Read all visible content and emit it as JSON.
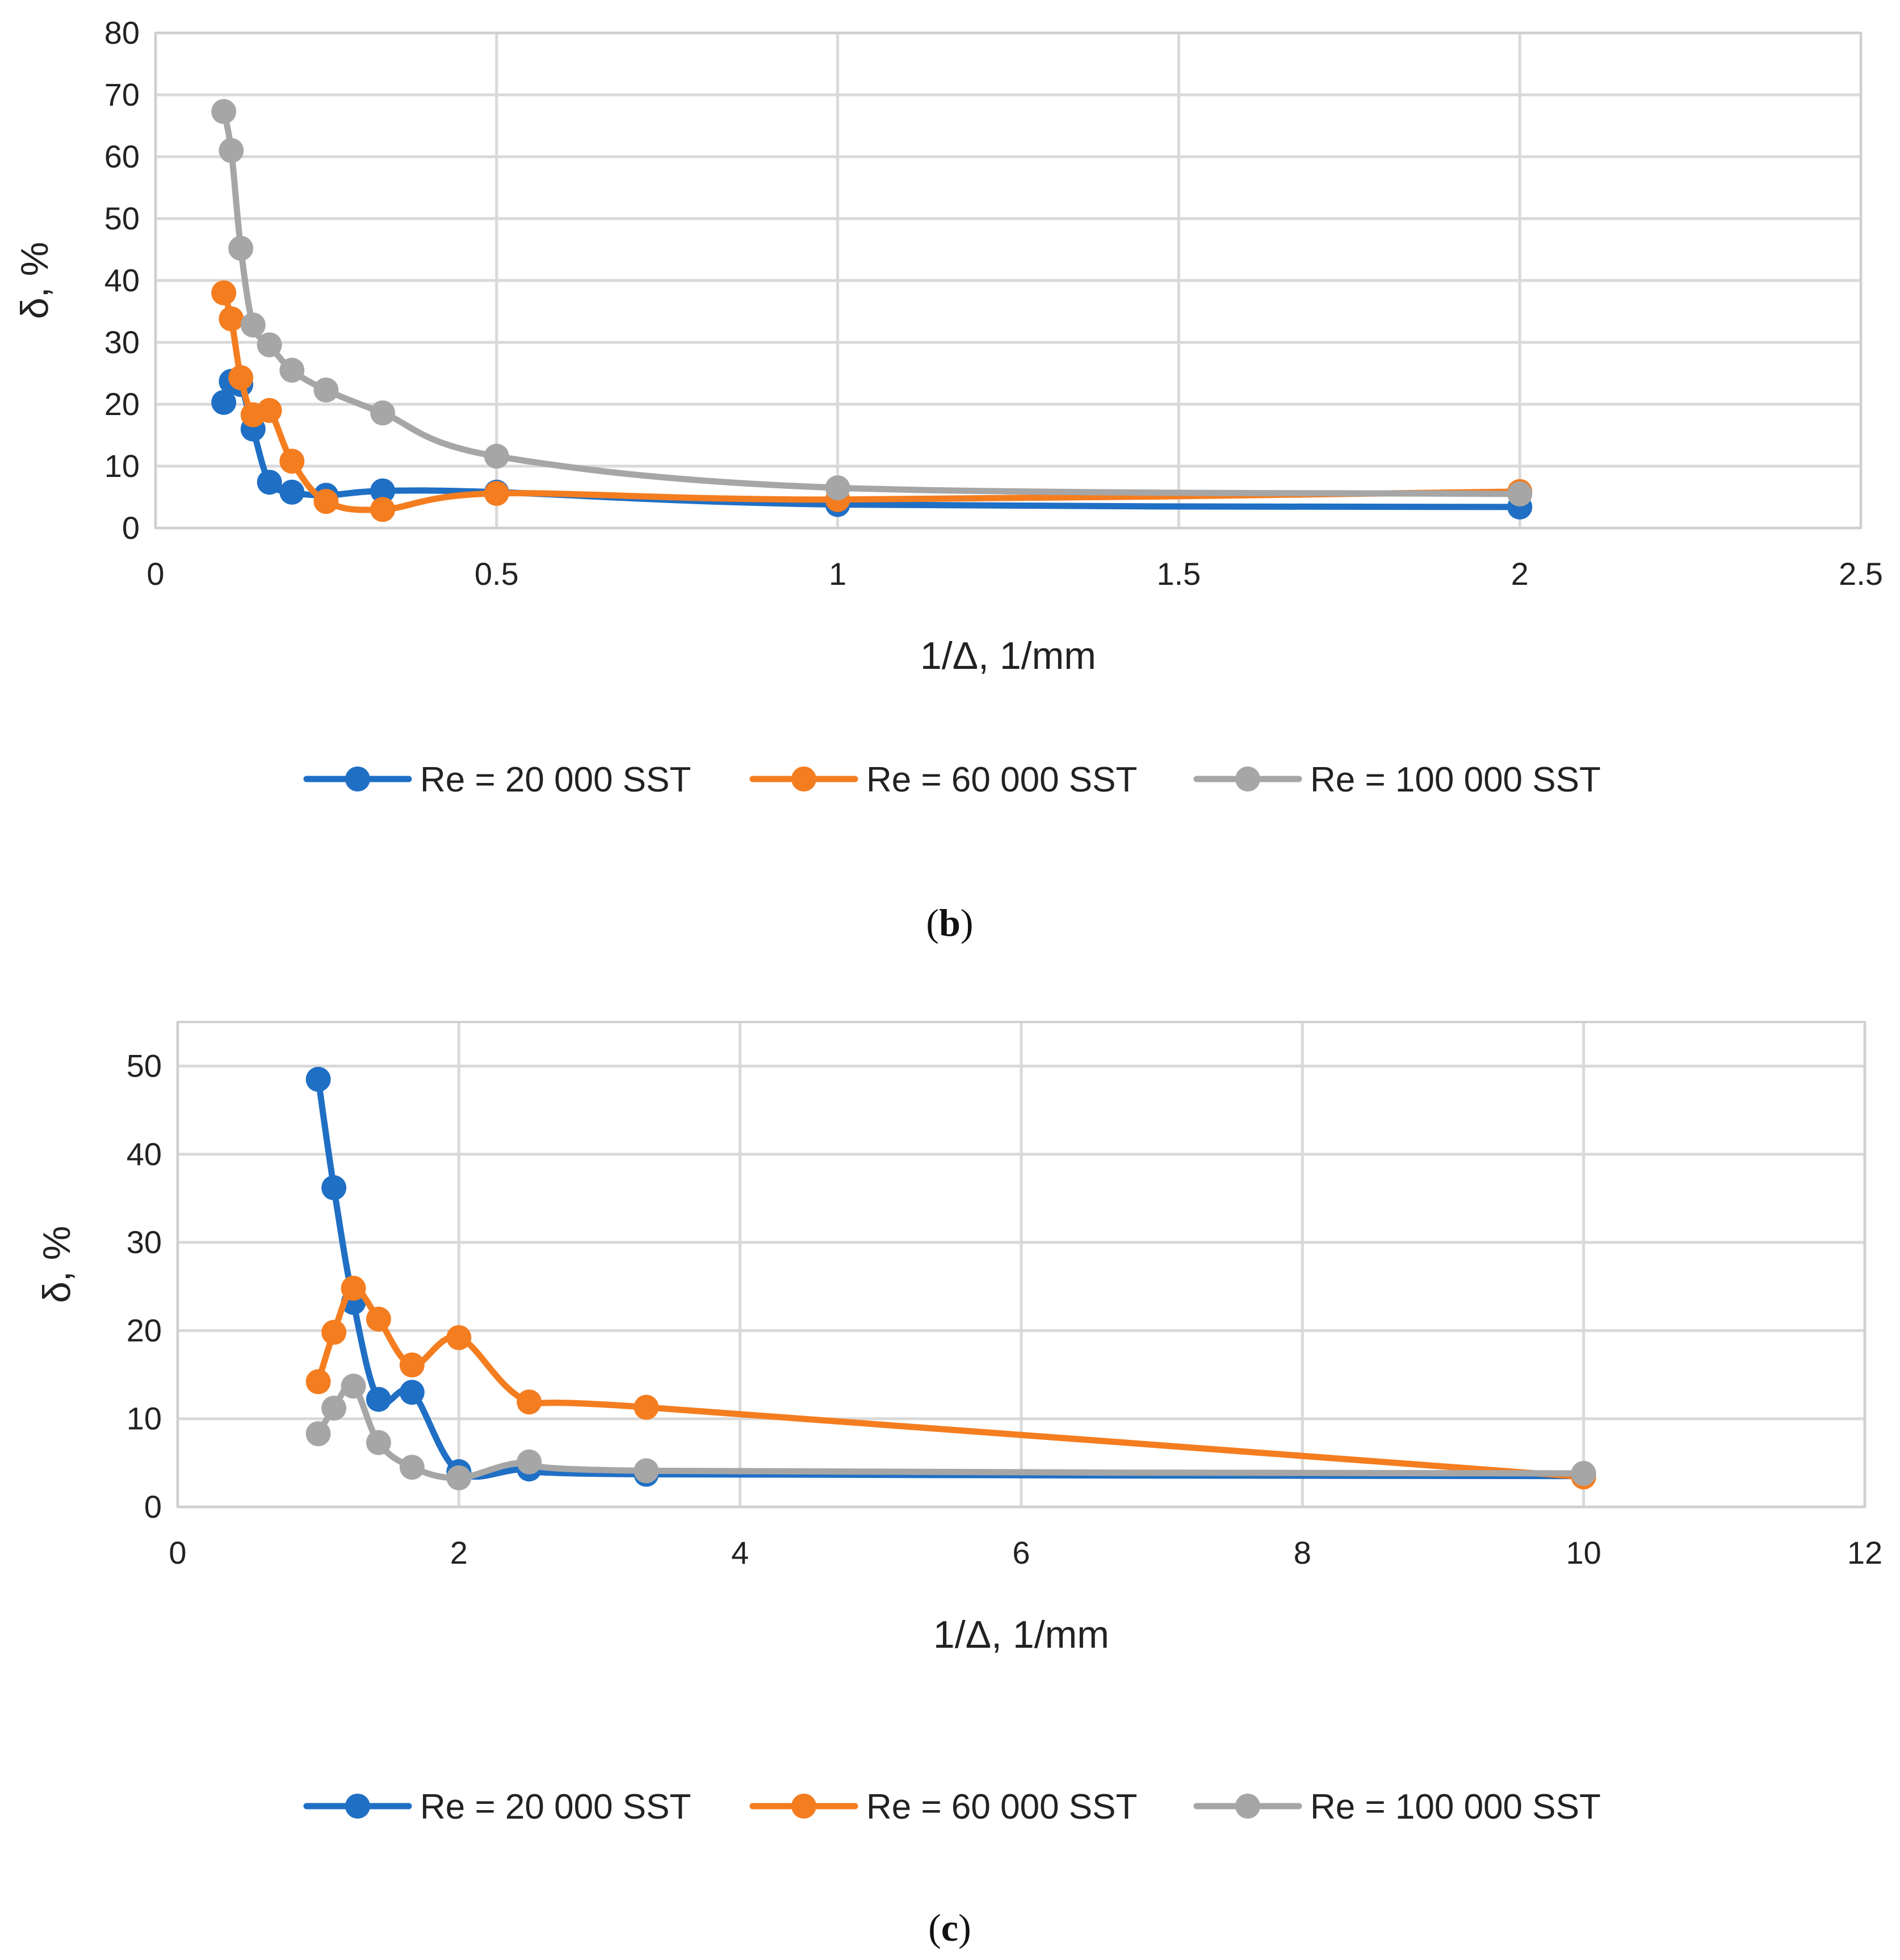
{
  "chart_data": [
    {
      "type": "line",
      "panel": "b",
      "caption_letter": "b",
      "xlabel": "1/Δ, 1/mm",
      "ylabel": "δ, %",
      "xlim": [
        0,
        2.5
      ],
      "ylim": [
        0,
        80
      ],
      "x_ticks": [
        0,
        0.5,
        1,
        1.5,
        2,
        2.5
      ],
      "x_tick_labels": [
        "0",
        "0.5",
        "1",
        "1.5",
        "2",
        "2.5"
      ],
      "y_ticks": [
        0,
        10,
        20,
        30,
        40,
        50,
        60,
        70,
        80
      ],
      "y_tick_labels": [
        "0",
        "10",
        "20",
        "30",
        "40",
        "50",
        "60",
        "70",
        "80"
      ],
      "grid": true,
      "legend_position": "bottom",
      "series": [
        {
          "name": "Re = 20 000 SST",
          "color": "#1f6fc5",
          "x": [
            0.1,
            0.111,
            0.125,
            0.143,
            0.167,
            0.2,
            0.25,
            0.333,
            0.5,
            1,
            2
          ],
          "y": [
            20.3,
            23.7,
            23.2,
            16,
            7.4,
            5.8,
            5.3,
            6,
            5.8,
            3.8,
            3.4
          ]
        },
        {
          "name": "Re = 60 000 SST",
          "color": "#f47d20",
          "x": [
            0.1,
            0.111,
            0.125,
            0.143,
            0.167,
            0.2,
            0.25,
            0.333,
            0.5,
            1,
            2
          ],
          "y": [
            38,
            33.8,
            24.3,
            18.3,
            19,
            10.8,
            4.3,
            3,
            5.6,
            4.6,
            5.9
          ]
        },
        {
          "name": "Re = 100 000 SST",
          "color": "#a6a6a6",
          "x": [
            0.1,
            0.111,
            0.125,
            0.143,
            0.167,
            0.2,
            0.25,
            0.333,
            0.5,
            1,
            2
          ],
          "y": [
            67.3,
            61,
            45.2,
            32.8,
            29.6,
            25.5,
            22.3,
            18.6,
            11.6,
            6.5,
            5.5
          ]
        }
      ]
    },
    {
      "type": "line",
      "panel": "c",
      "caption_letter": "c",
      "xlabel": "1/Δ, 1/mm",
      "ylabel": "δ, %",
      "xlim": [
        0,
        12
      ],
      "ylim": [
        0,
        55
      ],
      "x_ticks": [
        0,
        2,
        4,
        6,
        8,
        10,
        12
      ],
      "x_tick_labels": [
        "0",
        "2",
        "4",
        "6",
        "8",
        "10",
        "12"
      ],
      "y_ticks": [
        0,
        10,
        20,
        30,
        40,
        50
      ],
      "y_tick_labels": [
        "0",
        "10",
        "20",
        "30",
        "40",
        "50"
      ],
      "grid": true,
      "legend_position": "bottom",
      "series": [
        {
          "name": "Re = 20 000 SST",
          "color": "#1f6fc5",
          "x": [
            1,
            1.111,
            1.25,
            1.429,
            1.667,
            2,
            2.5,
            3.333,
            10
          ],
          "y": [
            48.5,
            36.2,
            23.2,
            12.2,
            13,
            4,
            4.3,
            3.7,
            3.5
          ]
        },
        {
          "name": "Re = 60 000 SST",
          "color": "#f47d20",
          "x": [
            1,
            1.111,
            1.25,
            1.429,
            1.667,
            2,
            2.5,
            3.333,
            10
          ],
          "y": [
            14.2,
            19.8,
            24.8,
            21.3,
            16.1,
            19.2,
            11.9,
            11.3,
            3.4
          ]
        },
        {
          "name": "Re = 100 000 SST",
          "color": "#a6a6a6",
          "x": [
            1,
            1.111,
            1.25,
            1.429,
            1.667,
            2,
            2.5,
            3.333,
            10
          ],
          "y": [
            8.3,
            11.2,
            13.7,
            7.3,
            4.5,
            3.3,
            5.1,
            4.1,
            3.8
          ]
        }
      ]
    }
  ]
}
